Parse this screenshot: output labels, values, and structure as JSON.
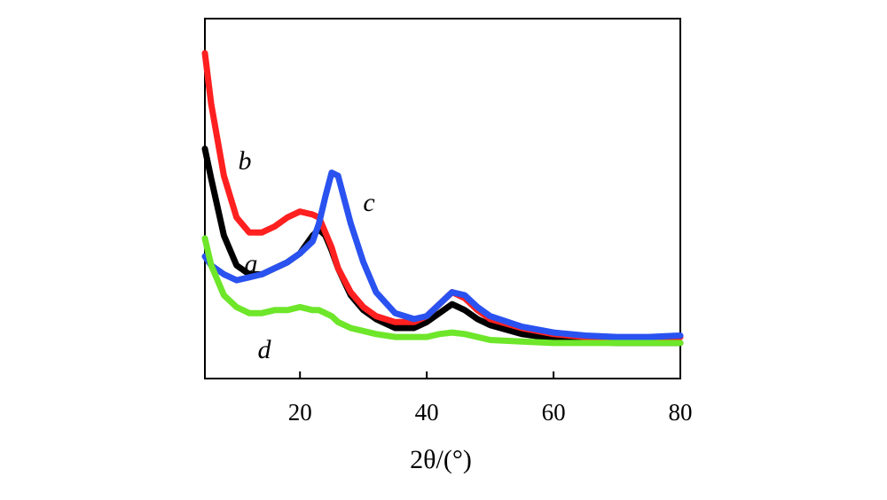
{
  "chart_data": {
    "type": "line",
    "title": "",
    "xlabel": "2θ/(°)",
    "ylabel": "",
    "xlim": [
      5,
      80
    ],
    "ylim": [
      0,
      10
    ],
    "xticks": [
      20,
      40,
      60,
      80
    ],
    "yticks": [],
    "grid": false,
    "legend": "none (inline letter labels)",
    "x": [
      5,
      6,
      8,
      10,
      12,
      14,
      16,
      18,
      20,
      22,
      23,
      24,
      25,
      26,
      28,
      30,
      32,
      35,
      38,
      40,
      42,
      44,
      46,
      48,
      50,
      55,
      60,
      65,
      70,
      75,
      80
    ],
    "series": [
      {
        "name": "a",
        "label": "a",
        "color": "#000000",
        "values": [
          6.8,
          5.8,
          3.9,
          2.9,
          2.6,
          2.6,
          2.8,
          3.0,
          3.3,
          3.9,
          4.1,
          3.9,
          3.4,
          2.8,
          1.9,
          1.4,
          1.1,
          0.8,
          0.8,
          1.0,
          1.3,
          1.6,
          1.4,
          1.1,
          0.9,
          0.6,
          0.45,
          0.35,
          0.3,
          0.3,
          0.3
        ]
      },
      {
        "name": "b",
        "label": "b",
        "color": "#ff2020",
        "values": [
          10.0,
          8.3,
          5.9,
          4.5,
          4.0,
          4.0,
          4.2,
          4.5,
          4.7,
          4.6,
          4.5,
          4.0,
          3.5,
          2.8,
          2.0,
          1.5,
          1.2,
          1.0,
          1.0,
          1.2,
          1.6,
          2.0,
          1.8,
          1.4,
          1.1,
          0.8,
          0.6,
          0.5,
          0.45,
          0.45,
          0.5
        ]
      },
      {
        "name": "c",
        "label": "c",
        "color": "#2a52f0",
        "values": [
          3.2,
          2.9,
          2.6,
          2.4,
          2.5,
          2.6,
          2.8,
          3.0,
          3.3,
          3.7,
          4.3,
          5.2,
          6.0,
          5.9,
          4.3,
          3.0,
          2.0,
          1.3,
          1.1,
          1.2,
          1.6,
          2.0,
          1.9,
          1.5,
          1.2,
          0.85,
          0.65,
          0.55,
          0.5,
          0.5,
          0.55
        ]
      },
      {
        "name": "d",
        "label": "d",
        "color": "#6ee62a",
        "values": [
          3.8,
          2.9,
          1.9,
          1.5,
          1.3,
          1.3,
          1.4,
          1.4,
          1.5,
          1.4,
          1.4,
          1.3,
          1.2,
          1.0,
          0.8,
          0.7,
          0.6,
          0.5,
          0.5,
          0.5,
          0.6,
          0.65,
          0.6,
          0.5,
          0.4,
          0.35,
          0.3,
          0.3,
          0.3,
          0.3,
          0.3
        ]
      }
    ]
  }
}
